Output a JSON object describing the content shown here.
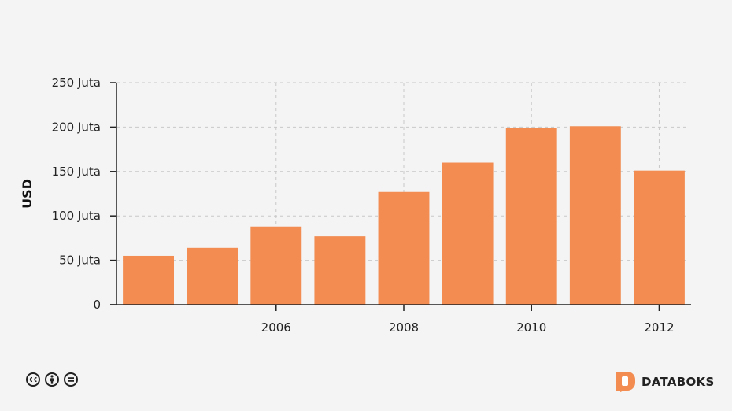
{
  "chart_data": {
    "type": "bar",
    "categories": [
      "2004",
      "2005",
      "2006",
      "2007",
      "2008",
      "2009",
      "2010",
      "2011",
      "2012"
    ],
    "values": [
      55,
      64,
      88,
      77,
      127,
      160,
      199,
      201,
      151
    ],
    "ylabel": "USD",
    "ylim": [
      0,
      250
    ],
    "y_ticks": [
      {
        "value": 0,
        "label": "0"
      },
      {
        "value": 50,
        "label": "50 Juta"
      },
      {
        "value": 100,
        "label": "100 Juta"
      },
      {
        "value": 150,
        "label": "150 Juta"
      },
      {
        "value": 200,
        "label": "200 Juta"
      },
      {
        "value": 250,
        "label": "250 Juta"
      }
    ],
    "x_tick_labels": [
      "2006",
      "2008",
      "2010",
      "2012"
    ],
    "grid": true,
    "bar_color": "#f28c51"
  },
  "footer": {
    "license_icons": [
      "creative-commons-icon",
      "attribution-icon",
      "no-derivatives-icon"
    ],
    "brand": "DATABOKS",
    "brand_color": "#f28c51"
  }
}
